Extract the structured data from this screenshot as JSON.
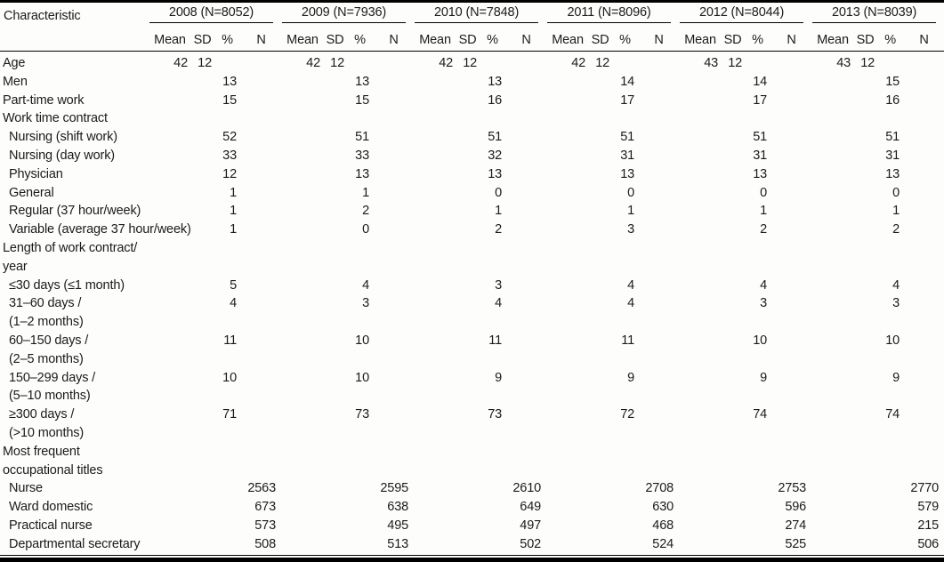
{
  "table": {
    "characteristic_header": "Characteristic",
    "sub_headers": [
      "Mean",
      "SD",
      "%",
      "N"
    ],
    "year_groups": [
      "2008 (N=8052)",
      "2009 (N=7936)",
      "2010 (N=7848)",
      "2011 (N=8096)",
      "2012 (N=8044)",
      "2013 (N=8039)"
    ],
    "rows": [
      {
        "label_lines": [
          "Age"
        ],
        "indent": 0,
        "mean": [
          "42",
          "42",
          "42",
          "42",
          "43",
          "43"
        ],
        "sd": [
          "12",
          "12",
          "12",
          "12",
          "12",
          "12"
        ]
      },
      {
        "label_lines": [
          "Men"
        ],
        "indent": 0,
        "pct": [
          "13",
          "13",
          "13",
          "14",
          "14",
          "15"
        ]
      },
      {
        "label_lines": [
          "Part-time work"
        ],
        "indent": 0,
        "pct": [
          "15",
          "15",
          "16",
          "17",
          "17",
          "16"
        ]
      },
      {
        "label_lines": [
          "Work time contract"
        ],
        "indent": 0
      },
      {
        "label_lines": [
          "Nursing (shift work)"
        ],
        "indent": 1,
        "pct": [
          "52",
          "51",
          "51",
          "51",
          "51",
          "51"
        ]
      },
      {
        "label_lines": [
          "Nursing (day work)"
        ],
        "indent": 1,
        "pct": [
          "33",
          "33",
          "32",
          "31",
          "31",
          "31"
        ]
      },
      {
        "label_lines": [
          "Physician"
        ],
        "indent": 1,
        "pct": [
          "12",
          "13",
          "13",
          "13",
          "13",
          "13"
        ]
      },
      {
        "label_lines": [
          "General"
        ],
        "indent": 1,
        "pct": [
          "1",
          "1",
          "0",
          "0",
          "0",
          "0"
        ]
      },
      {
        "label_lines": [
          "Regular (37 hour/week)"
        ],
        "indent": 1,
        "pct": [
          "1",
          "2",
          "1",
          "1",
          "1",
          "1"
        ]
      },
      {
        "label_lines": [
          "Variable (average 37 hour/week)"
        ],
        "indent": 1,
        "pct": [
          "1",
          "0",
          "2",
          "3",
          "2",
          "2"
        ]
      },
      {
        "label_lines": [
          "Length of work contract/",
          "year"
        ],
        "indent": 0
      },
      {
        "label_lines": [
          "≤30 days (≤1 month)"
        ],
        "indent": 1,
        "pct": [
          "5",
          "4",
          "3",
          "4",
          "4",
          "4"
        ]
      },
      {
        "label_lines": [
          "31–60 days /",
          "(1–2 months)"
        ],
        "indent": 1,
        "pct": [
          "4",
          "3",
          "4",
          "4",
          "3",
          "3"
        ]
      },
      {
        "label_lines": [
          "60–150 days /",
          "(2–5 months)"
        ],
        "indent": 1,
        "pct": [
          "11",
          "10",
          "11",
          "11",
          "10",
          "10"
        ]
      },
      {
        "label_lines": [
          "150–299 days /",
          "(5–10 months)"
        ],
        "indent": 1,
        "pct": [
          "10",
          "10",
          "9",
          "9",
          "9",
          "9"
        ]
      },
      {
        "label_lines": [
          "≥300 days /",
          "(>10 months)"
        ],
        "indent": 1,
        "pct": [
          "71",
          "73",
          "73",
          "72",
          "74",
          "74"
        ]
      },
      {
        "label_lines": [
          "Most frequent",
          "occupational titles"
        ],
        "indent": 0
      },
      {
        "label_lines": [
          "Nurse"
        ],
        "indent": 1,
        "n": [
          "2563",
          "2595",
          "2610",
          "2708",
          "2753",
          "2770"
        ]
      },
      {
        "label_lines": [
          "Ward domestic"
        ],
        "indent": 1,
        "n": [
          "673",
          "638",
          "649",
          "630",
          "596",
          "579"
        ]
      },
      {
        "label_lines": [
          "Practical nurse"
        ],
        "indent": 1,
        "n": [
          "573",
          "495",
          "497",
          "468",
          "274",
          "215"
        ]
      },
      {
        "label_lines": [
          "Departmental secretary"
        ],
        "indent": 1,
        "n": [
          "508",
          "513",
          "502",
          "524",
          "525",
          "506"
        ]
      }
    ]
  }
}
